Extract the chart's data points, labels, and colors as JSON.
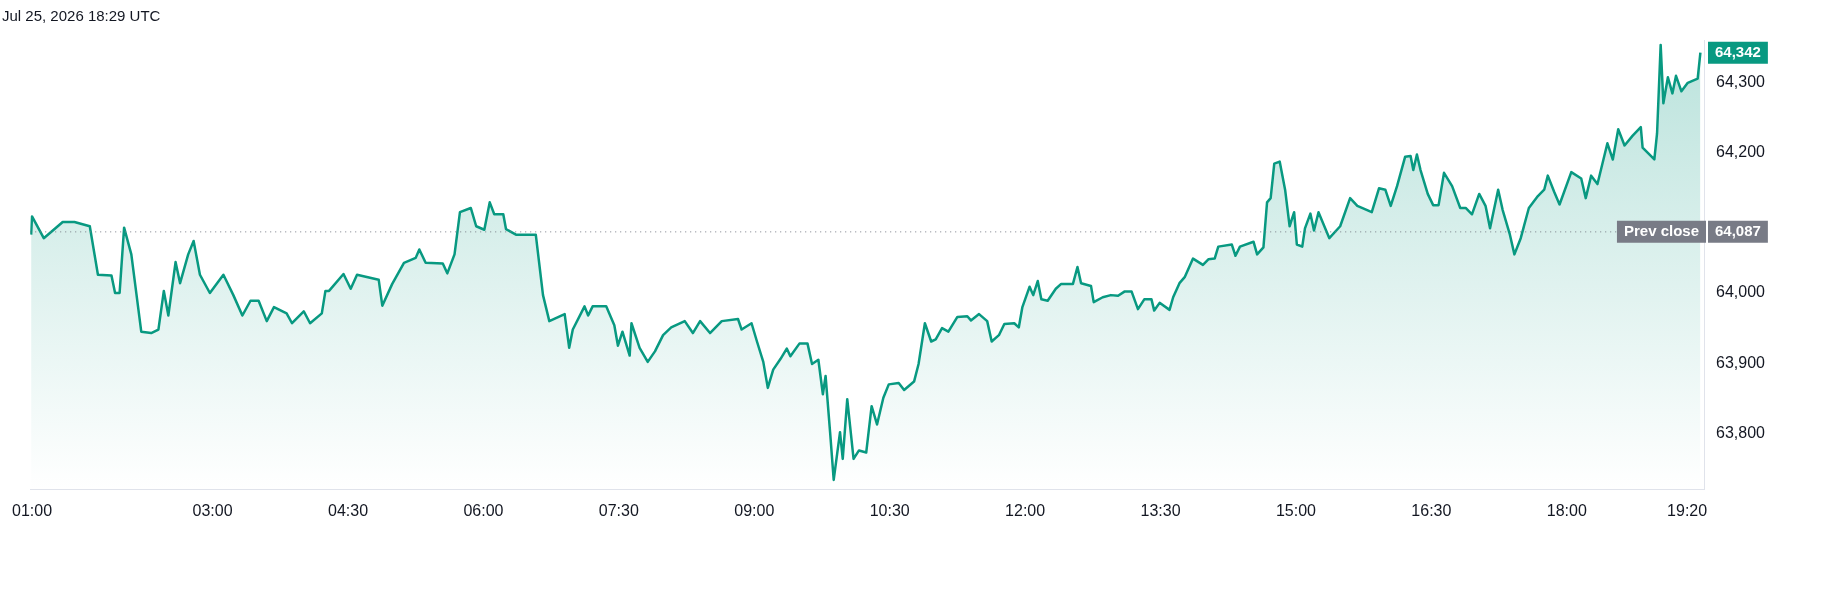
{
  "chart_data": {
    "type": "area",
    "title": "Jul 25, 2026 18:29 UTC",
    "x": [
      0.99,
      1.0,
      1.13,
      1.34,
      1.47,
      1.64,
      1.73,
      1.88,
      1.92,
      1.97,
      2.02,
      2.1,
      2.21,
      2.32,
      2.4,
      2.46,
      2.51,
      2.59,
      2.64,
      2.73,
      2.79,
      2.86,
      2.97,
      3.12,
      3.23,
      3.33,
      3.42,
      3.51,
      3.6,
      3.68,
      3.82,
      3.88,
      4.01,
      4.08,
      4.21,
      4.25,
      4.29,
      4.45,
      4.53,
      4.6,
      4.84,
      4.88,
      4.99,
      5.12,
      5.25,
      5.29,
      5.36,
      5.55,
      5.6,
      5.68,
      5.74,
      5.86,
      5.92,
      6.01,
      6.07,
      6.12,
      6.22,
      6.25,
      6.36,
      6.58,
      6.66,
      6.73,
      6.9,
      6.95,
      6.99,
      7.12,
      7.16,
      7.21,
      7.36,
      7.45,
      7.49,
      7.54,
      7.62,
      7.64,
      7.73,
      7.82,
      7.9,
      7.99,
      8.08,
      8.23,
      8.32,
      8.4,
      8.51,
      8.64,
      8.82,
      8.86,
      8.97,
      9.03,
      9.1,
      9.15,
      9.21,
      9.29,
      9.36,
      9.4,
      9.5,
      9.59,
      9.64,
      9.71,
      9.76,
      9.79,
      9.84,
      9.88,
      9.95,
      9.98,
      10.03,
      10.1,
      10.16,
      10.24,
      10.3,
      10.36,
      10.43,
      10.49,
      10.6,
      10.66,
      10.77,
      10.82,
      10.89,
      10.96,
      11.01,
      11.08,
      11.15,
      11.25,
      11.36,
      11.4,
      11.49,
      11.58,
      11.63,
      11.71,
      11.77,
      11.88,
      11.93,
      11.97,
      12.05,
      12.09,
      12.14,
      12.18,
      12.25,
      12.34,
      12.4,
      12.53,
      12.58,
      12.62,
      12.73,
      12.76,
      12.86,
      12.95,
      13.03,
      13.1,
      13.18,
      13.25,
      13.32,
      13.4,
      13.43,
      13.49,
      13.6,
      13.64,
      13.71,
      13.77,
      13.86,
      13.97,
      14.03,
      14.1,
      14.14,
      14.29,
      14.33,
      14.38,
      14.53,
      14.57,
      14.64,
      14.68,
      14.72,
      14.76,
      14.82,
      14.88,
      14.93,
      14.98,
      15.01,
      15.07,
      15.1,
      15.16,
      15.2,
      15.25,
      15.37,
      15.49,
      15.6,
      15.68,
      15.84,
      15.92,
      15.99,
      16.05,
      16.12,
      16.21,
      16.27,
      16.3,
      16.34,
      16.38,
      16.46,
      16.52,
      16.58,
      16.64,
      16.73,
      16.82,
      16.88,
      16.95,
      17.03,
      17.1,
      17.15,
      17.24,
      17.29,
      17.37,
      17.42,
      17.49,
      17.58,
      17.68,
      17.75,
      17.79,
      17.86,
      17.92,
      18.05,
      18.16,
      18.21,
      18.27,
      18.34,
      18.45,
      18.51,
      18.57,
      18.64,
      18.73,
      18.82,
      18.84,
      18.97,
      19.0,
      19.04,
      19.07,
      19.12,
      19.17,
      19.21,
      19.27,
      19.34,
      19.45,
      19.48
    ],
    "series": [
      {
        "color": "#089981",
        "values": [
          64083,
          64109,
          64078,
          64101,
          64101,
          64095,
          64026,
          64025,
          64000,
          64000,
          64093,
          64055,
          63945,
          63943,
          63948,
          64003,
          63968,
          64044,
          64014,
          64055,
          64074,
          64026,
          64000,
          64026,
          63997,
          63968,
          63989,
          63989,
          63960,
          63980,
          63971,
          63957,
          63974,
          63957,
          63971,
          64003,
          64003,
          64027,
          64006,
          64026,
          64019,
          63982,
          64013,
          64043,
          64050,
          64062,
          64043,
          64042,
          64028,
          64055,
          64115,
          64121,
          64095,
          64090,
          64129,
          64112,
          64112,
          64091,
          64083,
          64083,
          63997,
          63960,
          63970,
          63922,
          63948,
          63981,
          63968,
          63981,
          63981,
          63954,
          63925,
          63945,
          63911,
          63957,
          63922,
          63902,
          63917,
          63940,
          63951,
          63960,
          63943,
          63960,
          63943,
          63960,
          63963,
          63948,
          63957,
          63931,
          63902,
          63865,
          63891,
          63906,
          63921,
          63910,
          63928,
          63928,
          63899,
          63905,
          63856,
          63882,
          63802,
          63734,
          63802,
          63764,
          63849,
          63764,
          63776,
          63773,
          63839,
          63813,
          63851,
          63870,
          63872,
          63862,
          63874,
          63899,
          63957,
          63931,
          63934,
          63950,
          63945,
          63966,
          63967,
          63961,
          63970,
          63960,
          63931,
          63940,
          63956,
          63957,
          63951,
          63980,
          64009,
          63997,
          64017,
          63991,
          63989,
          64006,
          64013,
          64013,
          64037,
          64014,
          64010,
          63987,
          63994,
          63997,
          63996,
          64002,
          64002,
          63977,
          63991,
          63991,
          63975,
          63986,
          63976,
          63994,
          64014,
          64023,
          64049,
          64040,
          64048,
          64049,
          64066,
          64069,
          64053,
          64066,
          64073,
          64055,
          64065,
          64129,
          64135,
          64184,
          64187,
          64147,
          64095,
          64115,
          64069,
          64066,
          64092,
          64113,
          64089,
          64115,
          64078,
          64095,
          64135,
          64124,
          64115,
          64149,
          64147,
          64124,
          64152,
          64194,
          64195,
          64175,
          64197,
          64175,
          64141,
          64125,
          64125,
          64171,
          64152,
          64121,
          64121,
          64112,
          64141,
          64124,
          64092,
          64147,
          64118,
          64083,
          64055,
          64078,
          64121,
          64138,
          64147,
          64167,
          64144,
          64126,
          64172,
          64163,
          64135,
          64167,
          64155,
          64213,
          64190,
          64233,
          64210,
          64224,
          64236,
          64207,
          64190,
          64227,
          64353,
          64270,
          64307,
          64284,
          64309,
          64287,
          64299,
          64305,
          64342
        ]
      }
    ],
    "xlim": [
      0.98,
      19.52
    ],
    "xticks": [
      {
        "value": 1,
        "label": "01:00"
      },
      {
        "value": 3,
        "label": "03:00"
      },
      {
        "value": 4.5,
        "label": "04:30"
      },
      {
        "value": 6,
        "label": "06:00"
      },
      {
        "value": 7.5,
        "label": "07:30"
      },
      {
        "value": 9,
        "label": "09:00"
      },
      {
        "value": 10.5,
        "label": "10:30"
      },
      {
        "value": 12,
        "label": "12:00"
      },
      {
        "value": 13.5,
        "label": "13:30"
      },
      {
        "value": 15,
        "label": "15:00"
      },
      {
        "value": 16.5,
        "label": "16:30"
      },
      {
        "value": 18,
        "label": "18:00"
      },
      {
        "value": 19.333,
        "label": "19:20"
      }
    ],
    "ylim": [
      63720,
      64360
    ],
    "yticks": [
      {
        "value": 63800,
        "label": "63,800"
      },
      {
        "value": 63900,
        "label": "63,900"
      },
      {
        "value": 64000,
        "label": "64,000"
      },
      {
        "value": 64200,
        "label": "64,200"
      },
      {
        "value": 64300,
        "label": "64,300"
      }
    ],
    "ref_lines": [
      {
        "axis": "y",
        "value": 64087,
        "label": "Prev close",
        "color": "#787b86",
        "line_style": "dotted"
      }
    ],
    "annotations": [
      {
        "text": "64,342",
        "x": 19.48,
        "y": 64342
      },
      "64,087"
    ],
    "grid": false,
    "legend": false,
    "marker": "none",
    "line_style": "solid"
  }
}
